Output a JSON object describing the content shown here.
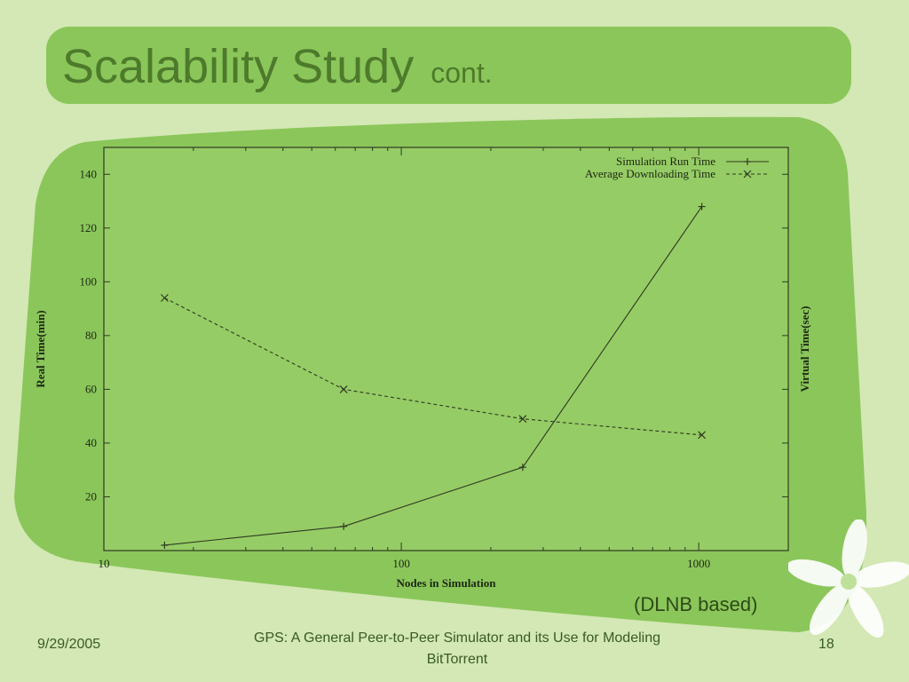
{
  "slide": {
    "title": "Scalability Study",
    "title_suffix": "cont.",
    "note": "(DLNB based)",
    "footer": {
      "date": "9/29/2005",
      "title": "GPS: A General Peer-to-Peer Simulator and its Use for Modeling BitTorrent",
      "page": "18"
    }
  },
  "colors": {
    "background": "#d3e8b4",
    "accent": "#8bc65a",
    "title_text": "#4d7a2b",
    "content_panel": "#8bc65a",
    "plot_area": "#96cc65",
    "lines": "#2e3a22"
  },
  "chart_data": {
    "type": "line",
    "xlabel": "Nodes in Simulation",
    "ylabel": "Real Time(min)",
    "y2label": "Virtual Time(sec)",
    "xscale": "log",
    "xlim": [
      10,
      2000
    ],
    "ylim": [
      0,
      150
    ],
    "x_ticks": [
      "10",
      "100",
      "1000"
    ],
    "y_ticks": [
      "20",
      "40",
      "60",
      "80",
      "100",
      "120",
      "140"
    ],
    "grid": false,
    "legend_position": "top-right",
    "series": [
      {
        "name": "Simulation Run Time",
        "style": "solid",
        "marker": "plus",
        "x": [
          16,
          64,
          256,
          1024
        ],
        "y": [
          2,
          9,
          31,
          128
        ]
      },
      {
        "name": "Average Downloading Time",
        "style": "dashed",
        "marker": "cross",
        "x": [
          16,
          64,
          256,
          1024
        ],
        "y": [
          94,
          60,
          49,
          43
        ]
      }
    ]
  }
}
